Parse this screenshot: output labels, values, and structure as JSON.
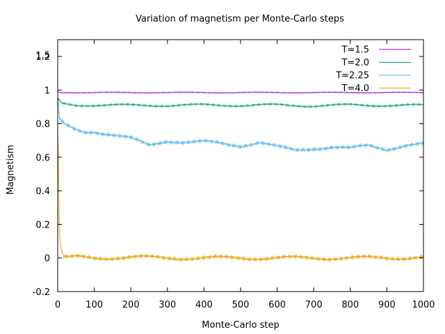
{
  "chart_data": {
    "type": "line",
    "title": "Variation of magnetism per Monte-Carlo steps",
    "xlabel": "Monte-Carlo step",
    "ylabel": "Magnetism",
    "xlim": [
      0,
      1000
    ],
    "ylim": [
      -0.2,
      1.3
    ],
    "xticks": [
      0,
      100,
      200,
      300,
      400,
      500,
      600,
      700,
      800,
      900,
      1000
    ],
    "yticks": [
      -0.2,
      0,
      0.2,
      0.4,
      0.6,
      0.8,
      1.0,
      1.2
    ],
    "ytick_labels": [
      "-0.2",
      "0",
      "0.2",
      "0.4",
      "0.6",
      "0.8",
      "1",
      "1.2"
    ],
    "extra_ytick": {
      "value": 1.5,
      "label": "1.5"
    },
    "legend_position": "top-right",
    "grid": false,
    "series": [
      {
        "name": "T=1.5",
        "color": "#9400d3",
        "x": [
          0,
          10,
          50,
          100,
          200,
          300,
          400,
          500,
          600,
          700,
          800,
          900,
          1000
        ],
        "values": [
          0.99,
          0.985,
          0.985,
          0.985,
          0.985,
          0.985,
          0.985,
          0.985,
          0.985,
          0.985,
          0.985,
          0.985,
          0.985
        ]
      },
      {
        "name": "T=2.0",
        "color": "#009e73",
        "x": [
          0,
          10,
          50,
          100,
          200,
          300,
          400,
          500,
          600,
          700,
          800,
          900,
          1000
        ],
        "values": [
          0.95,
          0.92,
          0.91,
          0.91,
          0.91,
          0.908,
          0.912,
          0.908,
          0.912,
          0.905,
          0.912,
          0.908,
          0.91
        ]
      },
      {
        "name": "T=2.25",
        "color": "#56b4e9",
        "x": [
          0,
          5,
          10,
          20,
          40,
          60,
          80,
          100,
          150,
          200,
          250,
          300,
          350,
          400,
          450,
          500,
          550,
          600,
          650,
          700,
          750,
          800,
          850,
          900,
          950,
          1000
        ],
        "values": [
          0.95,
          0.84,
          0.81,
          0.79,
          0.77,
          0.755,
          0.75,
          0.755,
          0.735,
          0.71,
          0.67,
          0.7,
          0.69,
          0.69,
          0.68,
          0.67,
          0.69,
          0.66,
          0.64,
          0.655,
          0.66,
          0.65,
          0.67,
          0.65,
          0.67,
          0.675
        ]
      },
      {
        "name": "T=4.0",
        "color": "#e69f00",
        "x": [
          0,
          2,
          4,
          6,
          10,
          15,
          20,
          30,
          50,
          100,
          200,
          300,
          400,
          500,
          600,
          700,
          800,
          900,
          1000
        ],
        "values": [
          0.75,
          0.58,
          0.22,
          0.1,
          0.04,
          0.02,
          0.005,
          0.0,
          0.005,
          0.0,
          0.005,
          0.0,
          0.0,
          0.0,
          0.0,
          0.0,
          0.0,
          0.0,
          0.005
        ]
      }
    ]
  }
}
